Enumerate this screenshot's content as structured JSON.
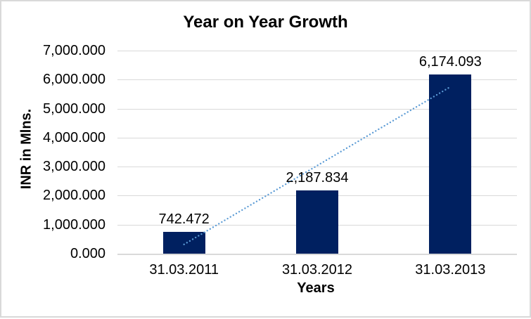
{
  "window": {
    "background": "#ffffff",
    "frame_border_color": "#d9d9d9"
  },
  "chart_data": {
    "type": "bar",
    "title": "Year on Year Growth",
    "xlabel": "Years",
    "ylabel": "INR in Mlns.",
    "categories": [
      "31.03.2011",
      "31.03.2012",
      "31.03.2013"
    ],
    "values": [
      742.472,
      2187.834,
      6174.093
    ],
    "value_labels": [
      "742.472",
      "2,187.834",
      "6,174.093"
    ],
    "ylim": [
      0,
      7000
    ],
    "ytick_step": 1000,
    "ytick_labels": [
      "0.000",
      "1,000.000",
      "2,000.000",
      "3,000.000",
      "4,000.000",
      "5,000.000",
      "6,000.000",
      "7,000.000"
    ],
    "grid": true,
    "legend": "none",
    "bar_color": "#002060",
    "gridline_color": "#d9d9d9",
    "text_color": "#000000",
    "trendline": {
      "type": "linear",
      "style": "dotted",
      "color": "#5b9bd5"
    }
  }
}
